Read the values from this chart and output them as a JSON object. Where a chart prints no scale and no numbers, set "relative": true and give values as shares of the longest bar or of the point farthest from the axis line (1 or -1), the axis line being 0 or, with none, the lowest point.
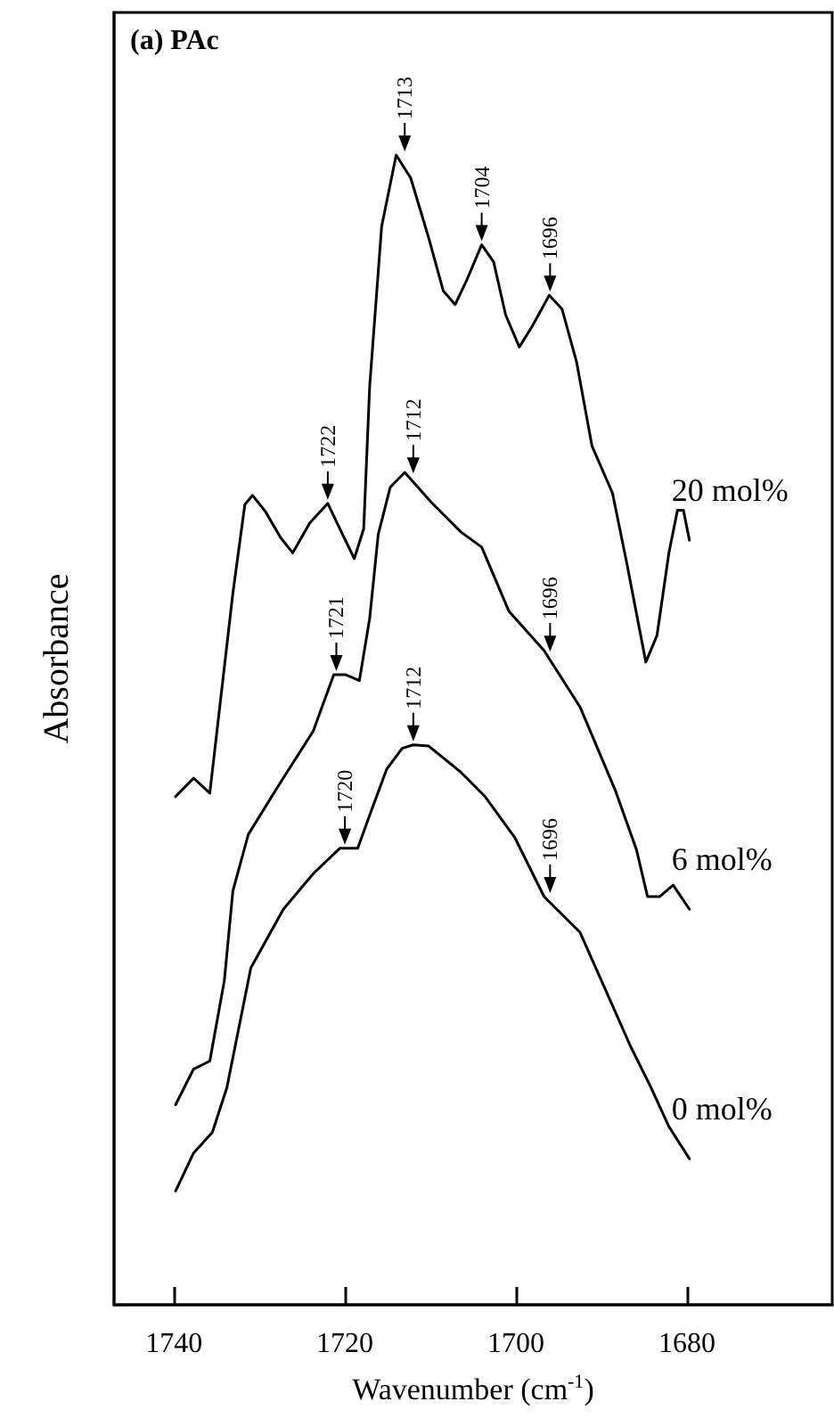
{
  "chart_data": {
    "type": "line",
    "title": "(a) PAc",
    "xlabel": "Wavenumber (cm$^{-1}$)",
    "ylabel": "Absorbance",
    "relative": true,
    "xlim": [
      1747,
      1663
    ],
    "xticks": [
      1740,
      1720,
      1700,
      1680
    ],
    "tick_labels": "x",
    "grid": false,
    "legend": false,
    "marker": "none",
    "line_style": "solid",
    "series": [
      {
        "name": "20 mol%",
        "color": "#000000",
        "x": [
          1739.8,
          1737.7,
          1735.8,
          1733.1,
          1731.7,
          1730.8,
          1729.3,
          1727.5,
          1726.1,
          1724.1,
          1722.0,
          1720.6,
          1718.9,
          1717.8,
          1717.1,
          1715.7,
          1714.0,
          1712.3,
          1710.2,
          1708.5,
          1707.1,
          1705.7,
          1704.0,
          1702.6,
          1701.2,
          1699.6,
          1698.1,
          1696.1,
          1694.6,
          1692.9,
          1691.1,
          1688.7,
          1687.0,
          1684.8,
          1683.5,
          1682.1,
          1681.1,
          1680.4,
          1679.7
        ],
        "values": [
          0.442,
          0.458,
          0.445,
          0.619,
          0.696,
          0.704,
          0.69,
          0.667,
          0.654,
          0.68,
          0.697,
          0.675,
          0.649,
          0.675,
          0.799,
          0.938,
          1.0,
          0.98,
          0.928,
          0.882,
          0.87,
          0.892,
          0.922,
          0.907,
          0.861,
          0.833,
          0.851,
          0.878,
          0.866,
          0.82,
          0.747,
          0.706,
          0.644,
          0.559,
          0.582,
          0.654,
          0.691,
          0.691,
          0.665
        ]
      },
      {
        "name": "6 mol%",
        "color": "#000000",
        "x": [
          1739.8,
          1737.7,
          1735.8,
          1734.1,
          1733.1,
          1731.3,
          1727.9,
          1723.7,
          1721.3,
          1719.9,
          1718.3,
          1717.1,
          1716.1,
          1714.7,
          1713.0,
          1709.9,
          1706.4,
          1704.0,
          1700.8,
          1696.7,
          1692.5,
          1688.4,
          1685.9,
          1684.6,
          1683.2,
          1681.6,
          1679.7
        ],
        "values": [
          0.174,
          0.205,
          0.212,
          0.282,
          0.36,
          0.409,
          0.45,
          0.499,
          0.548,
          0.548,
          0.543,
          0.597,
          0.67,
          0.711,
          0.724,
          0.698,
          0.672,
          0.659,
          0.603,
          0.569,
          0.52,
          0.448,
          0.396,
          0.355,
          0.355,
          0.365,
          0.344
        ]
      },
      {
        "name": "0 mol%",
        "color": "#000000",
        "x": [
          1739.8,
          1737.7,
          1735.5,
          1733.8,
          1731.0,
          1727.2,
          1723.7,
          1720.6,
          1718.5,
          1716.8,
          1715.1,
          1713.3,
          1712.0,
          1710.2,
          1706.4,
          1703.6,
          1700.1,
          1696.7,
          1692.5,
          1689.1,
          1686.6,
          1684.2,
          1682.1,
          1679.7
        ],
        "values": [
          0.099,
          0.132,
          0.15,
          0.189,
          0.293,
          0.344,
          0.375,
          0.397,
          0.397,
          0.432,
          0.466,
          0.484,
          0.487,
          0.486,
          0.463,
          0.442,
          0.406,
          0.355,
          0.324,
          0.267,
          0.225,
          0.189,
          0.155,
          0.127
        ]
      }
    ],
    "annotations": [
      {
        "text": "1713",
        "x": 1713,
        "y": 1.0
      },
      {
        "text": "1704",
        "x": 1704,
        "y": 0.922
      },
      {
        "text": "1696",
        "x": 1696,
        "y": 0.878
      },
      {
        "text": "1722",
        "x": 1722,
        "y": 0.697
      },
      {
        "text": "1721",
        "x": 1721,
        "y": 0.548
      },
      {
        "text": "1712",
        "x": 1712,
        "y": 0.72
      },
      {
        "text": "1696",
        "x": 1696,
        "y": 0.565
      },
      {
        "text": "1720",
        "x": 1720,
        "y": 0.397
      },
      {
        "text": "1712",
        "x": 1712,
        "y": 0.487
      },
      {
        "text": "1696",
        "x": 1696,
        "y": 0.355
      }
    ]
  }
}
